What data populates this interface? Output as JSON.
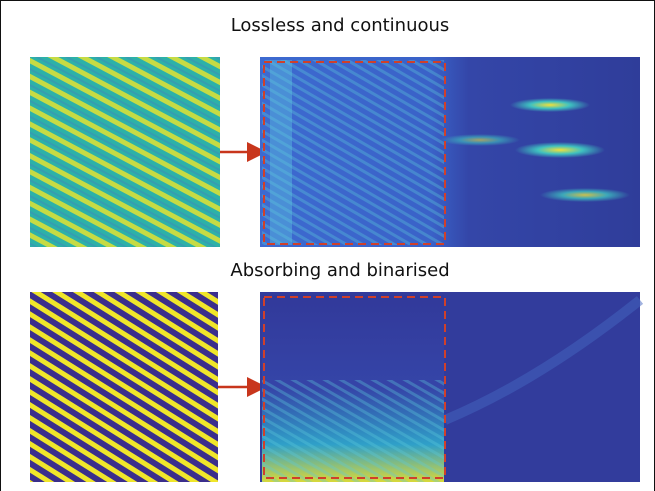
{
  "panels": [
    {
      "title": "Lossless and continuous"
    },
    {
      "title": "Absorbing and binarised"
    }
  ]
}
